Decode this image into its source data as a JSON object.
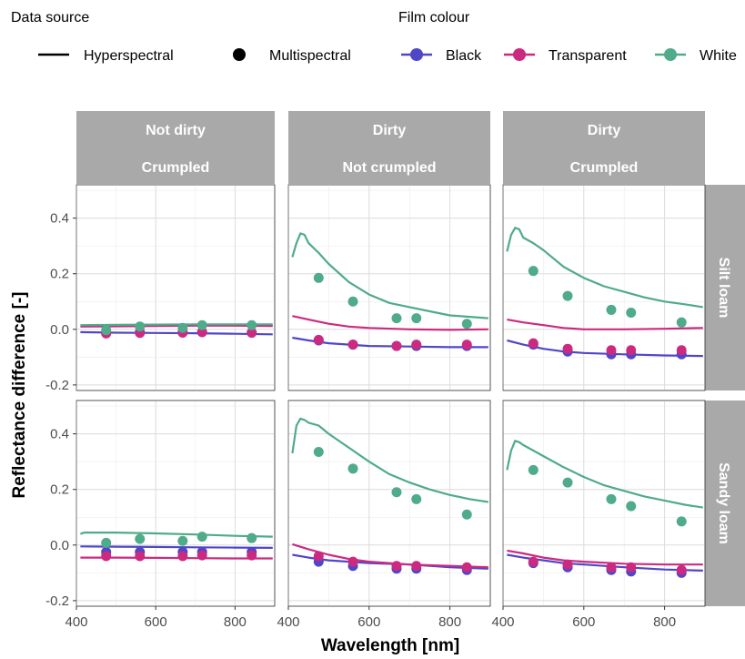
{
  "legend": {
    "source_title": "Data source",
    "source_items": [
      {
        "label": "Hyperspectral",
        "symbol": "line"
      },
      {
        "label": "Multispectral",
        "symbol": "point"
      }
    ],
    "colour_title": "Film colour",
    "colour_items": [
      {
        "label": "Black",
        "color": "#5046c8"
      },
      {
        "label": "Transparent",
        "color": "#cc2a80"
      },
      {
        "label": "White",
        "color": "#4fab8a"
      }
    ]
  },
  "chart_data": {
    "type": "line",
    "xlabel": "Wavelength [nm]",
    "ylabel": "Reflectance difference [-]",
    "xlim": [
      400,
      900
    ],
    "ylim": [
      -0.22,
      0.52
    ],
    "xticks": [
      400,
      600,
      800
    ],
    "yticks": [
      -0.2,
      0.0,
      0.2,
      0.4
    ],
    "ytick_labels": [
      "-0.2",
      "0.0",
      "0.2",
      "0.4"
    ],
    "grid": true,
    "columns": [
      {
        "line1": "Not dirty",
        "line2": "Crumpled"
      },
      {
        "line1": "Dirty",
        "line2": "Not crumpled"
      },
      {
        "line1": "Dirty",
        "line2": "Crumpled"
      }
    ],
    "rows": [
      "Silt loam",
      "Sandy loam"
    ],
    "multispectral_x": [
      475,
      560,
      668,
      717,
      842
    ],
    "panels": [
      {
        "row": 0,
        "col": 0,
        "hyperspectral": {
          "Black": [
            [
              410,
              -0.01
            ],
            [
              500,
              -0.012
            ],
            [
              600,
              -0.013
            ],
            [
              700,
              -0.014
            ],
            [
              800,
              -0.016
            ],
            [
              895,
              -0.018
            ]
          ],
          "Transparent": [
            [
              410,
              0.01
            ],
            [
              500,
              0.011
            ],
            [
              600,
              0.012
            ],
            [
              700,
              0.013
            ],
            [
              800,
              0.013
            ],
            [
              895,
              0.012
            ]
          ],
          "White": [
            [
              410,
              0.015
            ],
            [
              500,
              0.016
            ],
            [
              600,
              0.017
            ],
            [
              700,
              0.018
            ],
            [
              800,
              0.018
            ],
            [
              895,
              0.018
            ]
          ]
        },
        "multispectral": {
          "Black": [
            -0.012,
            -0.01,
            -0.01,
            -0.01,
            -0.012
          ],
          "Transparent": [
            -0.015,
            -0.013,
            -0.012,
            -0.01,
            -0.012
          ],
          "White": [
            -0.003,
            0.01,
            0.005,
            0.015,
            0.015
          ]
        }
      },
      {
        "row": 0,
        "col": 1,
        "hyperspectral": {
          "Black": [
            [
              410,
              -0.03
            ],
            [
              450,
              -0.04
            ],
            [
              500,
              -0.05
            ],
            [
              550,
              -0.055
            ],
            [
              600,
              -0.06
            ],
            [
              700,
              -0.062
            ],
            [
              800,
              -0.064
            ],
            [
              895,
              -0.064
            ]
          ],
          "Transparent": [
            [
              410,
              0.048
            ],
            [
              450,
              0.035
            ],
            [
              500,
              0.02
            ],
            [
              550,
              0.01
            ],
            [
              600,
              0.005
            ],
            [
              700,
              0.0
            ],
            [
              800,
              -0.002
            ],
            [
              895,
              0.0
            ]
          ],
          "White": [
            [
              410,
              0.26
            ],
            [
              420,
              0.31
            ],
            [
              430,
              0.345
            ],
            [
              440,
              0.34
            ],
            [
              450,
              0.31
            ],
            [
              475,
              0.275
            ],
            [
              500,
              0.235
            ],
            [
              550,
              0.17
            ],
            [
              600,
              0.125
            ],
            [
              650,
              0.095
            ],
            [
              700,
              0.08
            ],
            [
              750,
              0.065
            ],
            [
              800,
              0.05
            ],
            [
              850,
              0.045
            ],
            [
              895,
              0.04
            ]
          ]
        },
        "multispectral": {
          "Black": [
            -0.04,
            -0.055,
            -0.06,
            -0.06,
            -0.06
          ],
          "Transparent": [
            -0.038,
            -0.055,
            -0.06,
            -0.055,
            -0.055
          ],
          "White": [
            0.185,
            0.1,
            0.04,
            0.04,
            0.02
          ]
        }
      },
      {
        "row": 0,
        "col": 2,
        "hyperspectral": {
          "Black": [
            [
              410,
              -0.04
            ],
            [
              450,
              -0.055
            ],
            [
              500,
              -0.07
            ],
            [
              550,
              -0.08
            ],
            [
              600,
              -0.085
            ],
            [
              700,
              -0.09
            ],
            [
              800,
              -0.094
            ],
            [
              895,
              -0.096
            ]
          ],
          "Transparent": [
            [
              410,
              0.035
            ],
            [
              450,
              0.025
            ],
            [
              500,
              0.015
            ],
            [
              550,
              0.005
            ],
            [
              600,
              0.0
            ],
            [
              700,
              0.0
            ],
            [
              800,
              0.002
            ],
            [
              895,
              0.005
            ]
          ],
          "White": [
            [
              410,
              0.28
            ],
            [
              420,
              0.34
            ],
            [
              430,
              0.365
            ],
            [
              440,
              0.36
            ],
            [
              450,
              0.33
            ],
            [
              475,
              0.31
            ],
            [
              500,
              0.285
            ],
            [
              550,
              0.225
            ],
            [
              600,
              0.185
            ],
            [
              650,
              0.155
            ],
            [
              700,
              0.135
            ],
            [
              750,
              0.115
            ],
            [
              800,
              0.1
            ],
            [
              850,
              0.09
            ],
            [
              895,
              0.08
            ]
          ]
        },
        "multispectral": {
          "Black": [
            -0.055,
            -0.08,
            -0.09,
            -0.09,
            -0.09
          ],
          "Transparent": [
            -0.05,
            -0.07,
            -0.075,
            -0.075,
            -0.075
          ],
          "White": [
            0.21,
            0.12,
            0.07,
            0.06,
            0.025
          ]
        }
      },
      {
        "row": 1,
        "col": 0,
        "hyperspectral": {
          "Black": [
            [
              410,
              -0.005
            ],
            [
              500,
              -0.006
            ],
            [
              600,
              -0.007
            ],
            [
              700,
              -0.008
            ],
            [
              800,
              -0.009
            ],
            [
              895,
              -0.01
            ]
          ],
          "Transparent": [
            [
              410,
              -0.045
            ],
            [
              500,
              -0.045
            ],
            [
              600,
              -0.046
            ],
            [
              700,
              -0.047
            ],
            [
              800,
              -0.048
            ],
            [
              895,
              -0.048
            ]
          ],
          "White": [
            [
              410,
              0.04
            ],
            [
              420,
              0.045
            ],
            [
              500,
              0.045
            ],
            [
              600,
              0.042
            ],
            [
              700,
              0.038
            ],
            [
              800,
              0.033
            ],
            [
              895,
              0.03
            ]
          ]
        },
        "multispectral": {
          "Black": [
            -0.025,
            -0.025,
            -0.025,
            -0.025,
            -0.025
          ],
          "Transparent": [
            -0.04,
            -0.04,
            -0.04,
            -0.037,
            -0.037
          ],
          "White": [
            0.008,
            0.022,
            0.015,
            0.03,
            0.025
          ]
        }
      },
      {
        "row": 1,
        "col": 2,
        "hyperspectral": {
          "Black": [
            [
              410,
              -0.035
            ],
            [
              450,
              -0.045
            ],
            [
              500,
              -0.055
            ],
            [
              550,
              -0.065
            ],
            [
              600,
              -0.07
            ],
            [
              700,
              -0.08
            ],
            [
              800,
              -0.088
            ],
            [
              895,
              -0.092
            ]
          ],
          "Transparent": [
            [
              410,
              -0.02
            ],
            [
              450,
              -0.03
            ],
            [
              500,
              -0.045
            ],
            [
              550,
              -0.055
            ],
            [
              600,
              -0.06
            ],
            [
              700,
              -0.067
            ],
            [
              800,
              -0.07
            ],
            [
              895,
              -0.07
            ]
          ],
          "White": [
            [
              410,
              0.27
            ],
            [
              420,
              0.34
            ],
            [
              430,
              0.375
            ],
            [
              440,
              0.37
            ],
            [
              450,
              0.36
            ],
            [
              475,
              0.34
            ],
            [
              500,
              0.32
            ],
            [
              550,
              0.28
            ],
            [
              600,
              0.245
            ],
            [
              650,
              0.215
            ],
            [
              700,
              0.195
            ],
            [
              750,
              0.175
            ],
            [
              800,
              0.16
            ],
            [
              850,
              0.145
            ],
            [
              895,
              0.135
            ]
          ]
        },
        "multispectral": {
          "Black": [
            -0.065,
            -0.08,
            -0.09,
            -0.095,
            -0.1
          ],
          "Transparent": [
            -0.06,
            -0.07,
            -0.08,
            -0.08,
            -0.09
          ],
          "White": [
            0.27,
            0.225,
            0.165,
            0.14,
            0.085
          ]
        }
      },
      {
        "row": 1,
        "col": 1,
        "hyperspectral": {
          "Black": [
            [
              410,
              -0.035
            ],
            [
              450,
              -0.045
            ],
            [
              500,
              -0.055
            ],
            [
              550,
              -0.06
            ],
            [
              600,
              -0.065
            ],
            [
              700,
              -0.07
            ],
            [
              800,
              -0.08
            ],
            [
              895,
              -0.085
            ]
          ],
          "Transparent": [
            [
              410,
              0.003
            ],
            [
              450,
              -0.015
            ],
            [
              500,
              -0.035
            ],
            [
              550,
              -0.05
            ],
            [
              600,
              -0.06
            ],
            [
              700,
              -0.07
            ],
            [
              800,
              -0.075
            ],
            [
              895,
              -0.08
            ]
          ],
          "White": [
            [
              410,
              0.33
            ],
            [
              420,
              0.43
            ],
            [
              430,
              0.455
            ],
            [
              440,
              0.45
            ],
            [
              450,
              0.44
            ],
            [
              475,
              0.43
            ],
            [
              500,
              0.4
            ],
            [
              550,
              0.35
            ],
            [
              600,
              0.3
            ],
            [
              650,
              0.255
            ],
            [
              700,
              0.225
            ],
            [
              750,
              0.2
            ],
            [
              800,
              0.18
            ],
            [
              850,
              0.165
            ],
            [
              895,
              0.155
            ]
          ]
        },
        "multispectral": {
          "Black": [
            -0.06,
            -0.075,
            -0.085,
            -0.085,
            -0.09
          ],
          "Transparent": [
            -0.04,
            -0.06,
            -0.075,
            -0.075,
            -0.08
          ],
          "White": [
            0.335,
            0.275,
            0.19,
            0.165,
            0.11
          ]
        }
      }
    ]
  }
}
